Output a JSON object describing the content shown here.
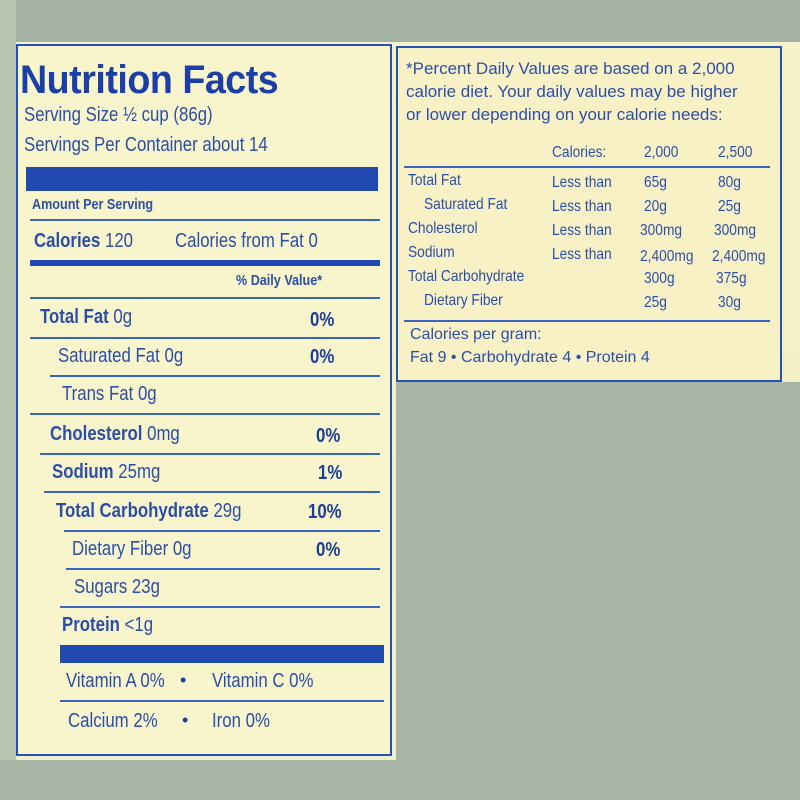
{
  "label": {
    "title": "Nutrition Facts",
    "serving_size": "Serving Size ½ cup (86g)",
    "servings_per_container": "Servings Per Container about 14",
    "amount_per_serving": "Amount Per Serving",
    "calories_label": "Calories",
    "calories_value": "120",
    "calories_from_fat": "Calories from Fat 0",
    "daily_value_header": "% Daily Value*",
    "nutrients": [
      {
        "name": "Total Fat",
        "amount": "0g",
        "dv": "0%"
      },
      {
        "name": "Saturated Fat",
        "amount": "0g",
        "dv": "0%"
      },
      {
        "name": "Trans Fat",
        "amount": "0g",
        "dv": ""
      },
      {
        "name": "Cholesterol",
        "amount": "0mg",
        "dv": "0%"
      },
      {
        "name": "Sodium",
        "amount": "25mg",
        "dv": "1%"
      },
      {
        "name": "Total Carbohydrate",
        "amount": "29g",
        "dv": "10%"
      },
      {
        "name": "Dietary Fiber",
        "amount": "0g",
        "dv": "0%"
      },
      {
        "name": "Sugars",
        "amount": "23g",
        "dv": ""
      },
      {
        "name": "Protein",
        "amount": "<1g",
        "dv": ""
      }
    ],
    "vitamins": {
      "vitamin_a": "Vitamin A 0%",
      "vitamin_c": "Vitamin C 0%",
      "calcium": "Calcium 2%",
      "iron": "Iron 0%",
      "separator": "•"
    }
  },
  "footnote": {
    "note_line1": "*Percent Daily Values are based on a 2,000",
    "note_line2": "calorie diet. Your daily values may be higher",
    "note_line3": "or lower depending on your calorie needs:",
    "header": {
      "label": "Calories:",
      "col1": "2,000",
      "col2": "2,500"
    },
    "rows": [
      {
        "name": "Total Fat",
        "qual": "Less than",
        "v1": "65g",
        "v2": "80g"
      },
      {
        "name": "Saturated Fat",
        "qual": "Less than",
        "v1": "20g",
        "v2": "25g"
      },
      {
        "name": "Cholesterol",
        "qual": "Less than",
        "v1": "300mg",
        "v2": "300mg"
      },
      {
        "name": "Sodium",
        "qual": "Less than",
        "v1": "2,400mg",
        "v2": "2,400mg"
      },
      {
        "name": "Total Carbohydrate",
        "qual": "",
        "v1": "300g",
        "v2": "375g"
      },
      {
        "name": "Dietary Fiber",
        "qual": "",
        "v1": "25g",
        "v2": "30g"
      }
    ],
    "calories_per_gram": "Calories per gram:",
    "per_gram_line": "Fat 9  •  Carbohydrate 4  •  Protein 4"
  }
}
